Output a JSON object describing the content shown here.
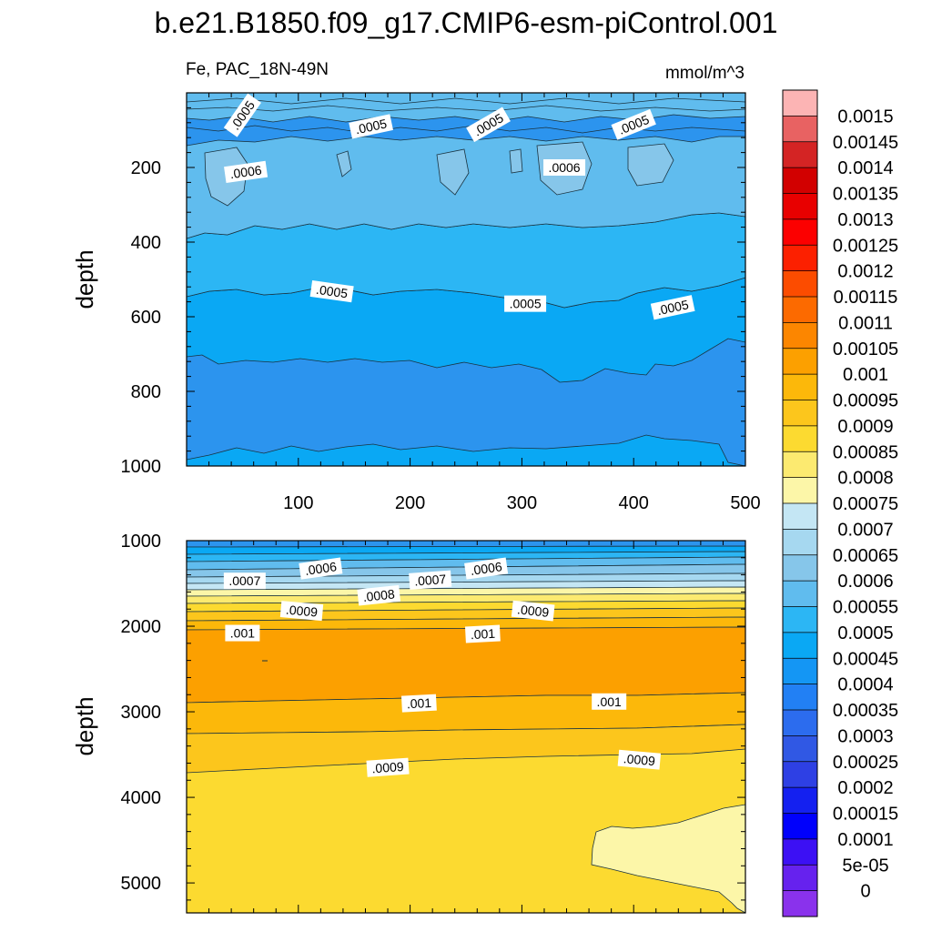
{
  "chart_data": [
    {
      "type": "contour",
      "panel": "upper",
      "title": "b.e21.B1850.f09_g17.CMIP6-esm-piControl.001",
      "left_label": "Fe, PAC_18N-49N",
      "right_label": "mmol/m^3",
      "ylabel": "depth",
      "xlabel": "",
      "xlim": [
        0,
        500
      ],
      "ylim": [
        1000,
        0
      ],
      "x_ticks": [
        "100",
        "200",
        "300",
        "400",
        "500"
      ],
      "y_ticks": [
        "200",
        "400",
        "600",
        "800",
        "1000"
      ],
      "contour_labels": [
        {
          "text": ".0005",
          "x": 50,
          "y": 60,
          "angle": -55
        },
        {
          "text": ".0005",
          "x": 165,
          "y": 90,
          "angle": -12
        },
        {
          "text": ".0005",
          "x": 270,
          "y": 85,
          "angle": -30
        },
        {
          "text": ".0005",
          "x": 400,
          "y": 85,
          "angle": -22
        },
        {
          "text": ".0006",
          "x": 53,
          "y": 212,
          "angle": -8
        },
        {
          "text": ".0006",
          "x": 338,
          "y": 200,
          "angle": 0
        },
        {
          "text": ".0005",
          "x": 130,
          "y": 532,
          "angle": 8
        },
        {
          "text": ".0005",
          "x": 303,
          "y": 565,
          "angle": 0
        },
        {
          "text": ".0005",
          "x": 435,
          "y": 575,
          "angle": -12
        }
      ]
    },
    {
      "type": "contour",
      "panel": "lower",
      "ylabel": "depth",
      "xlim": [
        0,
        500
      ],
      "ylim": [
        5350,
        1000
      ],
      "y_ticks": [
        "1000",
        "2000",
        "3000",
        "4000",
        "5000"
      ],
      "contour_labels": [
        {
          "text": ".0006",
          "x": 120,
          "y": 1325,
          "angle": -8
        },
        {
          "text": ".0006",
          "x": 268,
          "y": 1325,
          "angle": -8
        },
        {
          "text": ".0007",
          "x": 52,
          "y": 1470,
          "angle": 0
        },
        {
          "text": ".0007",
          "x": 218,
          "y": 1460,
          "angle": -4
        },
        {
          "text": ".0008",
          "x": 172,
          "y": 1640,
          "angle": -6
        },
        {
          "text": ".0009",
          "x": 103,
          "y": 1820,
          "angle": 5
        },
        {
          "text": ".0009",
          "x": 310,
          "y": 1820,
          "angle": 6
        },
        {
          "text": ".001",
          "x": 50,
          "y": 2080,
          "angle": 0
        },
        {
          "text": ".001",
          "x": 265,
          "y": 2090,
          "angle": -3
        },
        {
          "text": ".001",
          "x": 208,
          "y": 2900,
          "angle": -3
        },
        {
          "text": ".001",
          "x": 378,
          "y": 2880,
          "angle": 0
        },
        {
          "text": ".0009",
          "x": 180,
          "y": 3650,
          "angle": -4
        },
        {
          "text": ".0009",
          "x": 405,
          "y": 3560,
          "angle": 5
        }
      ]
    }
  ],
  "colorbar": {
    "labels": [
      "0.0015",
      "0.00145",
      "0.0014",
      "0.00135",
      "0.0013",
      "0.00125",
      "0.0012",
      "0.00115",
      "0.0011",
      "0.00105",
      "0.001",
      "0.00095",
      "0.0009",
      "0.00085",
      "0.0008",
      "0.00075",
      "0.0007",
      "0.00065",
      "0.0006",
      "0.00055",
      "0.0005",
      "0.00045",
      "0.0004",
      "0.00035",
      "0.0003",
      "0.00025",
      "0.0002",
      "0.00015",
      "0.0001",
      "5e-05",
      "0"
    ],
    "colors": [
      "#fcb4b4",
      "#e86262",
      "#d42424",
      "#d20000",
      "#e80000",
      "#fc0000",
      "#fc2000",
      "#fc4c00",
      "#fc6a00",
      "#fc8600",
      "#fca000",
      "#fcb80a",
      "#fcc61c",
      "#fcda30",
      "#fcea70",
      "#fcf6a8",
      "#c4e6f4",
      "#a6d8f0",
      "#86c6ea",
      "#60bcee",
      "#2cb6f4",
      "#0aa8f4",
      "#1496f4",
      "#2280f4",
      "#2c6cee",
      "#3058e4",
      "#2e40e4",
      "#1420f0",
      "#0000fc",
      "#3c10f4",
      "#6622ee",
      "#8a32ec"
    ]
  }
}
